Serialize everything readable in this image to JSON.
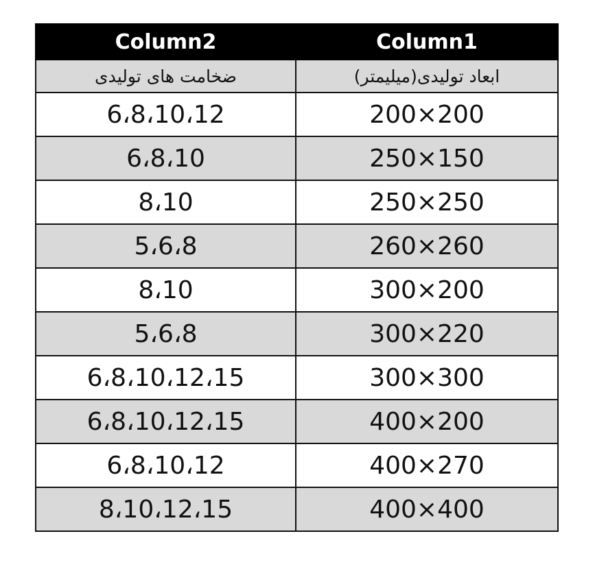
{
  "table": {
    "headers": [
      "Column2",
      "Column1"
    ],
    "subheaders": [
      "ضخامت های تولیدی",
      "ابعاد تولیدی(میلیمتر)"
    ],
    "rows": [
      {
        "thickness": "6،8،10،12",
        "dimensions": "200×200"
      },
      {
        "thickness": "6،8،10",
        "dimensions": "250×150"
      },
      {
        "thickness": "8،10",
        "dimensions": "250×250"
      },
      {
        "thickness": "5،6،8",
        "dimensions": "260×260"
      },
      {
        "thickness": "8،10",
        "dimensions": "300×200"
      },
      {
        "thickness": "5،6،8",
        "dimensions": "300×220"
      },
      {
        "thickness": "6،8،10،12،15",
        "dimensions": "300×300"
      },
      {
        "thickness": "6،8،10،12،15",
        "dimensions": "400×200"
      },
      {
        "thickness": "6،8،10،12",
        "dimensions": "400×270"
      },
      {
        "thickness": "8،10،12،15",
        "dimensions": "400×400"
      }
    ],
    "colors": {
      "header_bg": "#000000",
      "stripe_bg": "#d9d9d9"
    }
  }
}
